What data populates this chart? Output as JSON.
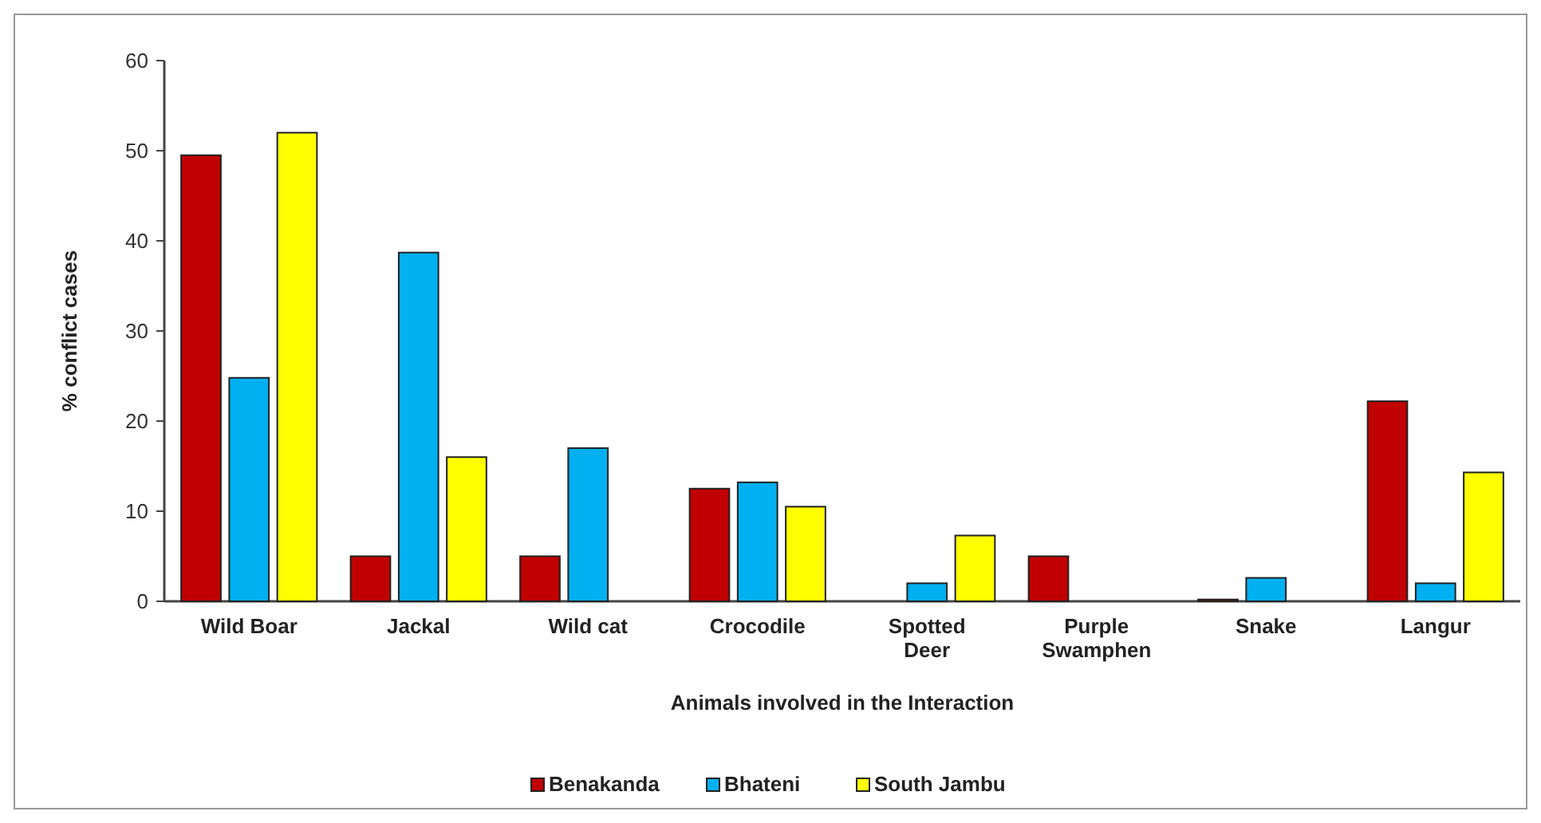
{
  "chart_data": {
    "type": "bar",
    "xlabel": "Animals involved in the Interaction",
    "ylabel": "% conflict cases",
    "categories": [
      "Wild Boar",
      "Jackal",
      "Wild cat",
      "Crocodile",
      "Spotted Deer",
      "Purple Swamphen",
      "Snake",
      "Langur"
    ],
    "series": [
      {
        "name": "Benakanda",
        "color": "#c00000",
        "values": [
          49.5,
          5,
          5,
          12.5,
          null,
          5,
          0.2,
          22.2
        ]
      },
      {
        "name": "Bhateni",
        "color": "#00b0f0",
        "values": [
          24.8,
          38.7,
          17,
          13.2,
          2,
          null,
          2.6,
          2
        ]
      },
      {
        "name": "South Jambu",
        "color": "#ffff00",
        "values": [
          52,
          16,
          null,
          10.5,
          7.3,
          null,
          null,
          14.3
        ]
      }
    ],
    "ylim": [
      0,
      60
    ],
    "yticks": [
      0,
      10,
      20,
      30,
      40,
      50,
      60
    ],
    "grid": false,
    "legend": "bottom"
  }
}
